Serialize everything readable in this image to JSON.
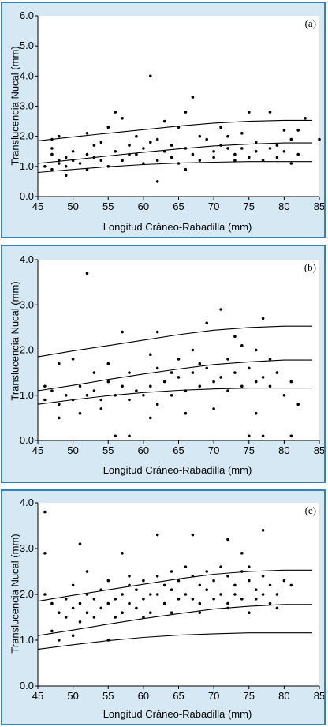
{
  "colors": {
    "panel_bg": "#d5e8f3",
    "panel_border": "#2b83c0",
    "ink": "#000000"
  },
  "chart_data": [
    {
      "type": "scatter",
      "panel_label": "(a)",
      "xlabel": "Longitud Cráneo-Rabadilla (mm)",
      "ylabel": "Translucencia Nucal (mm)",
      "xlim": [
        45,
        85
      ],
      "ylim": [
        0,
        6
      ],
      "x_ticks": [
        "45",
        "50",
        "55",
        "60",
        "65",
        "70",
        "75",
        "80",
        "85"
      ],
      "y_ticks": [
        "0.0",
        "1.0",
        "2.0",
        "3.0",
        "4.0",
        "5.0",
        "6.0"
      ],
      "curves": [
        {
          "points": [
            [
              45,
              1.85
            ],
            [
              50,
              1.98
            ],
            [
              55,
              2.1
            ],
            [
              60,
              2.22
            ],
            [
              65,
              2.34
            ],
            [
              70,
              2.44
            ],
            [
              75,
              2.5
            ],
            [
              80,
              2.53
            ],
            [
              84,
              2.53
            ]
          ]
        },
        {
          "points": [
            [
              45,
              1.1
            ],
            [
              50,
              1.22
            ],
            [
              55,
              1.35
            ],
            [
              60,
              1.47
            ],
            [
              65,
              1.58
            ],
            [
              70,
              1.68
            ],
            [
              75,
              1.74
            ],
            [
              80,
              1.78
            ],
            [
              84,
              1.78
            ]
          ]
        },
        {
          "points": [
            [
              45,
              0.8
            ],
            [
              50,
              0.9
            ],
            [
              55,
              0.99
            ],
            [
              60,
              1.06
            ],
            [
              65,
              1.11
            ],
            [
              70,
              1.14
            ],
            [
              75,
              1.16
            ],
            [
              80,
              1.16
            ],
            [
              84,
              1.16
            ]
          ]
        }
      ],
      "points": [
        [
          47,
          1.9
        ],
        [
          48,
          2.0
        ],
        [
          52,
          2.1
        ],
        [
          55,
          2.3
        ],
        [
          56,
          2.8
        ],
        [
          61,
          4.0
        ],
        [
          63,
          2.5
        ],
        [
          67,
          3.3
        ],
        [
          66,
          2.8
        ],
        [
          75,
          2.8
        ],
        [
          78,
          2.8
        ],
        [
          83,
          2.6
        ],
        [
          62,
          0.5
        ],
        [
          49,
          0.7
        ],
        [
          47,
          0.9
        ],
        [
          70,
          1.3
        ],
        [
          73,
          1.2
        ],
        [
          81,
          1.1
        ],
        [
          50,
          1.2
        ],
        [
          53,
          1.3
        ],
        [
          58,
          1.4
        ],
        [
          60,
          1.6
        ],
        [
          64,
          1.7
        ],
        [
          69,
          1.9
        ],
        [
          72,
          2.0
        ],
        [
          76,
          1.8
        ],
        [
          79,
          1.7
        ],
        [
          82,
          2.2
        ],
        [
          85,
          1.9
        ],
        [
          66,
          0.9
        ],
        [
          57,
          2.6
        ],
        [
          59,
          2.0
        ],
        [
          65,
          2.3
        ],
        [
          71,
          2.3
        ],
        [
          74,
          2.1
        ],
        [
          80,
          2.2
        ],
        [
          47,
          1.4
        ],
        [
          47,
          1.6
        ],
        [
          48,
          1.2
        ],
        [
          48,
          1.1
        ],
        [
          49,
          1.3
        ],
        [
          49,
          1.0
        ],
        [
          50,
          1.5
        ],
        [
          51,
          1.1
        ],
        [
          52,
          1.4
        ],
        [
          52,
          0.9
        ],
        [
          54,
          1.2
        ],
        [
          55,
          1.0
        ],
        [
          56,
          1.5
        ],
        [
          57,
          1.2
        ],
        [
          59,
          1.4
        ],
        [
          60,
          1.1
        ],
        [
          61,
          1.8
        ],
        [
          62,
          1.2
        ],
        [
          63,
          1.5
        ],
        [
          64,
          1.3
        ],
        [
          65,
          1.1
        ],
        [
          66,
          1.6
        ],
        [
          67,
          1.4
        ],
        [
          68,
          1.2
        ],
        [
          70,
          1.5
        ],
        [
          71,
          1.7
        ],
        [
          73,
          1.4
        ],
        [
          74,
          1.6
        ],
        [
          75,
          1.3
        ],
        [
          76,
          1.5
        ],
        [
          77,
          1.2
        ],
        [
          78,
          1.6
        ],
        [
          79,
          1.3
        ],
        [
          80,
          1.5
        ],
        [
          81,
          1.9
        ],
        [
          82,
          1.4
        ],
        [
          46,
          1.0
        ],
        [
          53,
          1.7
        ],
        [
          54,
          1.8
        ],
        [
          58,
          1.7
        ],
        [
          62,
          1.9
        ],
        [
          68,
          2.0
        ],
        [
          72,
          1.6
        ]
      ]
    },
    {
      "type": "scatter",
      "panel_label": "(b)",
      "xlabel": "Longitud Cráneo-Rabadilla (mm)",
      "ylabel": "Translucencia Nucal (mm)",
      "xlim": [
        45,
        85
      ],
      "ylim": [
        0,
        4
      ],
      "x_ticks": [
        "45",
        "50",
        "55",
        "60",
        "65",
        "70",
        "75",
        "80",
        "85"
      ],
      "y_ticks": [
        "0.0",
        "1.0",
        "2.0",
        "3.0",
        "4.0"
      ],
      "curves": [
        {
          "points": [
            [
              45,
              1.85
            ],
            [
              50,
              1.98
            ],
            [
              55,
              2.1
            ],
            [
              60,
              2.22
            ],
            [
              65,
              2.34
            ],
            [
              70,
              2.44
            ],
            [
              75,
              2.5
            ],
            [
              80,
              2.53
            ],
            [
              84,
              2.53
            ]
          ]
        },
        {
          "points": [
            [
              45,
              1.1
            ],
            [
              50,
              1.22
            ],
            [
              55,
              1.35
            ],
            [
              60,
              1.47
            ],
            [
              65,
              1.58
            ],
            [
              70,
              1.68
            ],
            [
              75,
              1.74
            ],
            [
              80,
              1.78
            ],
            [
              84,
              1.78
            ]
          ]
        },
        {
          "points": [
            [
              45,
              0.8
            ],
            [
              50,
              0.9
            ],
            [
              55,
              0.99
            ],
            [
              60,
              1.06
            ],
            [
              65,
              1.11
            ],
            [
              70,
              1.14
            ],
            [
              75,
              1.16
            ],
            [
              80,
              1.16
            ],
            [
              84,
              1.16
            ]
          ]
        }
      ],
      "points": [
        [
          52,
          3.7
        ],
        [
          71,
          2.9
        ],
        [
          77,
          2.7
        ],
        [
          69,
          2.6
        ],
        [
          57,
          2.4
        ],
        [
          62,
          2.4
        ],
        [
          48,
          1.7
        ],
        [
          50,
          1.8
        ],
        [
          55,
          1.7
        ],
        [
          61,
          1.9
        ],
        [
          65,
          1.8
        ],
        [
          67,
          2.0
        ],
        [
          73,
          2.3
        ],
        [
          74,
          2.1
        ],
        [
          76,
          2.0
        ],
        [
          56,
          0.1
        ],
        [
          58,
          0.1
        ],
        [
          75,
          0.1
        ],
        [
          81,
          0.1
        ],
        [
          77,
          0.1
        ],
        [
          48,
          0.5
        ],
        [
          51,
          0.6
        ],
        [
          54,
          0.7
        ],
        [
          61,
          0.5
        ],
        [
          66,
          0.6
        ],
        [
          70,
          0.7
        ],
        [
          76,
          0.6
        ],
        [
          82,
          0.8
        ],
        [
          46,
          0.9
        ],
        [
          47,
          1.1
        ],
        [
          49,
          1.0
        ],
        [
          50,
          0.9
        ],
        [
          51,
          1.2
        ],
        [
          52,
          1.0
        ],
        [
          53,
          1.1
        ],
        [
          54,
          0.9
        ],
        [
          55,
          1.3
        ],
        [
          56,
          1.0
        ],
        [
          57,
          1.2
        ],
        [
          58,
          0.9
        ],
        [
          59,
          1.1
        ],
        [
          60,
          1.0
        ],
        [
          61,
          1.2
        ],
        [
          62,
          0.8
        ],
        [
          63,
          1.3
        ],
        [
          64,
          1.0
        ],
        [
          65,
          1.4
        ],
        [
          66,
          1.1
        ],
        [
          67,
          1.5
        ],
        [
          68,
          1.2
        ],
        [
          69,
          1.6
        ],
        [
          70,
          1.3
        ],
        [
          71,
          1.4
        ],
        [
          72,
          1.1
        ],
        [
          73,
          1.5
        ],
        [
          74,
          1.2
        ],
        [
          75,
          1.6
        ],
        [
          76,
          1.3
        ],
        [
          77,
          1.4
        ],
        [
          78,
          1.2
        ],
        [
          79,
          1.5
        ],
        [
          80,
          1.0
        ],
        [
          81,
          1.3
        ],
        [
          46,
          1.2
        ],
        [
          48,
          0.8
        ],
        [
          53,
          1.5
        ],
        [
          58,
          1.5
        ],
        [
          62,
          1.6
        ],
        [
          64,
          1.5
        ],
        [
          68,
          1.7
        ],
        [
          72,
          1.8
        ],
        [
          78,
          1.8
        ]
      ]
    },
    {
      "type": "scatter",
      "panel_label": "(c)",
      "xlabel": "Longitud Cráneo-Rabadilla (mm)",
      "ylabel": "Translucencia Nucal (mm)",
      "xlim": [
        45,
        85
      ],
      "ylim": [
        0,
        4
      ],
      "x_ticks": [
        "45",
        "50",
        "55",
        "60",
        "65",
        "70",
        "75",
        "80",
        "85"
      ],
      "y_ticks": [
        "0.0",
        "1.0",
        "2.0",
        "3.0",
        "4.0"
      ],
      "curves": [
        {
          "points": [
            [
              45,
              1.85
            ],
            [
              50,
              1.98
            ],
            [
              55,
              2.1
            ],
            [
              60,
              2.22
            ],
            [
              65,
              2.34
            ],
            [
              70,
              2.44
            ],
            [
              75,
              2.5
            ],
            [
              80,
              2.53
            ],
            [
              84,
              2.53
            ]
          ]
        },
        {
          "points": [
            [
              45,
              1.1
            ],
            [
              50,
              1.22
            ],
            [
              55,
              1.35
            ],
            [
              60,
              1.47
            ],
            [
              65,
              1.58
            ],
            [
              70,
              1.68
            ],
            [
              75,
              1.74
            ],
            [
              80,
              1.78
            ],
            [
              84,
              1.78
            ]
          ]
        },
        {
          "points": [
            [
              45,
              0.8
            ],
            [
              50,
              0.9
            ],
            [
              55,
              0.99
            ],
            [
              60,
              1.06
            ],
            [
              65,
              1.11
            ],
            [
              70,
              1.14
            ],
            [
              75,
              1.16
            ],
            [
              80,
              1.16
            ],
            [
              84,
              1.16
            ]
          ]
        }
      ],
      "points": [
        [
          46,
          3.8
        ],
        [
          46,
          2.9
        ],
        [
          51,
          3.1
        ],
        [
          62,
          3.3
        ],
        [
          67,
          3.3
        ],
        [
          72,
          3.2
        ],
        [
          77,
          3.4
        ],
        [
          74,
          2.9
        ],
        [
          57,
          2.9
        ],
        [
          52,
          2.5
        ],
        [
          58,
          2.4
        ],
        [
          47,
          1.2
        ],
        [
          48,
          1.0
        ],
        [
          50,
          1.1
        ],
        [
          55,
          1.0
        ],
        [
          46,
          2.0
        ],
        [
          47,
          1.8
        ],
        [
          48,
          1.6
        ],
        [
          49,
          1.5
        ],
        [
          49,
          1.9
        ],
        [
          50,
          1.7
        ],
        [
          50,
          2.2
        ],
        [
          51,
          1.8
        ],
        [
          51,
          1.4
        ],
        [
          52,
          2.0
        ],
        [
          52,
          1.6
        ],
        [
          53,
          1.9
        ],
        [
          53,
          1.5
        ],
        [
          54,
          2.1
        ],
        [
          54,
          1.7
        ],
        [
          55,
          1.8
        ],
        [
          55,
          2.3
        ],
        [
          56,
          1.9
        ],
        [
          56,
          1.5
        ],
        [
          57,
          2.0
        ],
        [
          57,
          1.6
        ],
        [
          58,
          2.2
        ],
        [
          58,
          1.8
        ],
        [
          59,
          2.1
        ],
        [
          59,
          1.7
        ],
        [
          60,
          2.3
        ],
        [
          60,
          1.9
        ],
        [
          61,
          2.0
        ],
        [
          61,
          1.6
        ],
        [
          62,
          2.4
        ],
        [
          62,
          2.0
        ],
        [
          63,
          2.2
        ],
        [
          63,
          1.8
        ],
        [
          64,
          2.5
        ],
        [
          64,
          2.1
        ],
        [
          65,
          2.3
        ],
        [
          65,
          1.9
        ],
        [
          66,
          2.6
        ],
        [
          66,
          2.0
        ],
        [
          67,
          2.4
        ],
        [
          67,
          1.9
        ],
        [
          68,
          2.2
        ],
        [
          68,
          1.8
        ],
        [
          69,
          2.5
        ],
        [
          69,
          2.1
        ],
        [
          70,
          2.3
        ],
        [
          70,
          1.9
        ],
        [
          71,
          2.6
        ],
        [
          71,
          2.0
        ],
        [
          72,
          2.4
        ],
        [
          72,
          1.8
        ],
        [
          73,
          2.2
        ],
        [
          73,
          2.0
        ],
        [
          74,
          2.5
        ],
        [
          74,
          1.9
        ],
        [
          75,
          2.3
        ],
        [
          75,
          2.6
        ],
        [
          76,
          2.1
        ],
        [
          76,
          1.9
        ],
        [
          77,
          2.4
        ],
        [
          77,
          2.0
        ],
        [
          78,
          2.2
        ],
        [
          78,
          1.8
        ],
        [
          79,
          2.0
        ],
        [
          80,
          2.3
        ],
        [
          81,
          2.2
        ],
        [
          79,
          1.7
        ],
        [
          60,
          1.5
        ],
        [
          64,
          1.6
        ],
        [
          68,
          1.6
        ],
        [
          72,
          1.7
        ],
        [
          75,
          1.6
        ]
      ]
    }
  ]
}
